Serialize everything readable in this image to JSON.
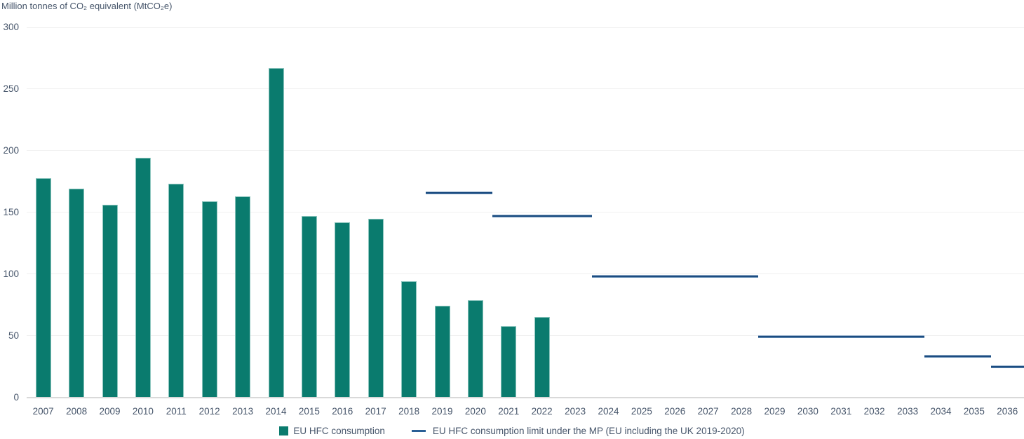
{
  "chart_data": {
    "type": "bar",
    "title": "Million tonnes of CO₂ equivalent (MtCO₂e)",
    "ylabel": "Million tonnes of CO₂ equivalent (MtCO₂e)",
    "xlabel": "",
    "ylim": [
      0,
      300
    ],
    "yticks": [
      0,
      50,
      100,
      150,
      200,
      250,
      300
    ],
    "grid": true,
    "legend_position": "bottom-center",
    "categories": [
      "2007",
      "2008",
      "2009",
      "2010",
      "2011",
      "2012",
      "2013",
      "2014",
      "2015",
      "2016",
      "2017",
      "2018",
      "2019",
      "2020",
      "2021",
      "2022",
      "2023",
      "2024",
      "2025",
      "2026",
      "2027",
      "2028",
      "2029",
      "2030",
      "2031",
      "2032",
      "2033",
      "2034",
      "2035",
      "2036"
    ],
    "series": [
      {
        "name": "EU HFC consumption",
        "type": "bar",
        "color": "#0a7b6e",
        "values": [
          178,
          169,
          156,
          194,
          173,
          159,
          163,
          267,
          147,
          142,
          145,
          94,
          74,
          79,
          58,
          65
        ]
      },
      {
        "name": "EU HFC consumption limit under the MP (EU including the UK 2019-2020)",
        "type": "line-segments",
        "color": "#2a5f96",
        "segments": [
          {
            "start": "2019",
            "end": "2020",
            "value": 166
          },
          {
            "start": "2021",
            "end": "2023",
            "value": 147
          },
          {
            "start": "2024",
            "end": "2028",
            "value": 98
          },
          {
            "start": "2029",
            "end": "2033",
            "value": 49
          },
          {
            "start": "2034",
            "end": "2035",
            "value": 33
          },
          {
            "start": "2036",
            "end": "2036",
            "value": 24.5
          }
        ]
      }
    ],
    "colors": {
      "bar": "#0a7b6e",
      "bar_stroke": "#8cc5be",
      "line": "#2a5f96",
      "grid": "#f0f0f0",
      "axis": "#d9d9d9",
      "text": "#47566b"
    }
  }
}
